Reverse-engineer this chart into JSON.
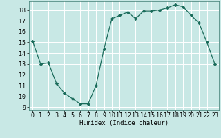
{
  "x": [
    0,
    1,
    2,
    3,
    4,
    5,
    6,
    7,
    8,
    9,
    10,
    11,
    12,
    13,
    14,
    15,
    16,
    17,
    18,
    19,
    20,
    21,
    22,
    23
  ],
  "y": [
    15.1,
    13.0,
    13.1,
    11.2,
    10.3,
    9.8,
    9.3,
    9.3,
    11.0,
    14.4,
    17.2,
    17.5,
    17.8,
    17.2,
    17.9,
    17.9,
    18.0,
    18.2,
    18.5,
    18.3,
    17.5,
    16.8,
    15.0,
    13.0
  ],
  "line_color": "#1a6b5a",
  "marker": "D",
  "marker_size": 2.2,
  "bg_color": "#c8e8e5",
  "grid_color": "#ffffff",
  "xlabel": "Humidex (Indice chaleur)",
  "xlim": [
    -0.5,
    23.5
  ],
  "ylim_min": 8.7,
  "ylim_max": 18.8,
  "yticks": [
    9,
    10,
    11,
    12,
    13,
    14,
    15,
    16,
    17,
    18
  ],
  "xticks": [
    0,
    1,
    2,
    3,
    4,
    5,
    6,
    7,
    8,
    9,
    10,
    11,
    12,
    13,
    14,
    15,
    16,
    17,
    18,
    19,
    20,
    21,
    22,
    23
  ],
  "xlabel_fontsize": 6.5,
  "tick_fontsize": 6.0
}
